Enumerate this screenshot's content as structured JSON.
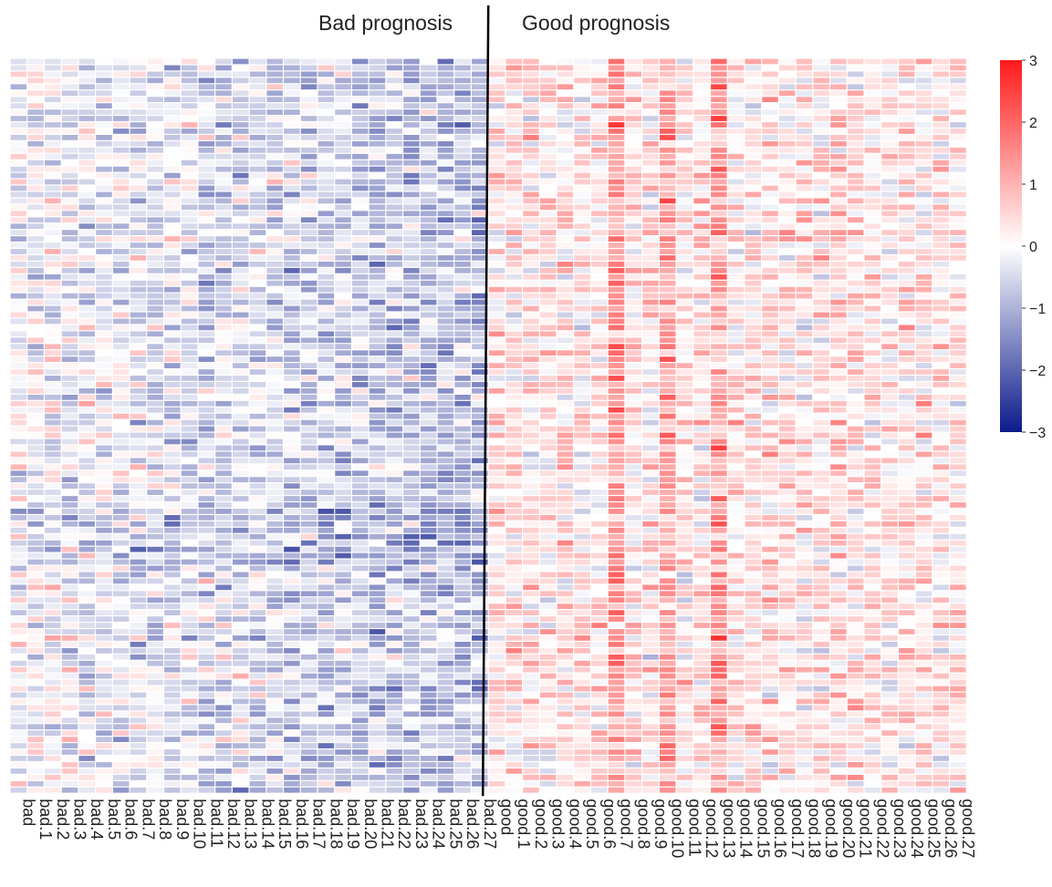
{
  "chart_data": {
    "type": "heatmap",
    "group_labels": [
      "Bad prognosis",
      "Good prognosis"
    ],
    "columns": [
      "bad",
      "bad.1",
      "bad.2",
      "bad.3",
      "bad.4",
      "bad.5",
      "bad.6",
      "bad.7",
      "bad.8",
      "bad.9",
      "bad.10",
      "bad.11",
      "bad.12",
      "bad.13",
      "bad.14",
      "bad.15",
      "bad.16",
      "bad.17",
      "bad.18",
      "bad.19",
      "bad.20",
      "bad.21",
      "bad.22",
      "bad.23",
      "bad.24",
      "bad.25",
      "bad.26",
      "bad.27",
      "good",
      "good.1",
      "good.2",
      "good.3",
      "good.4",
      "good.5",
      "good.6",
      "good.7",
      "good.8",
      "good.9",
      "good.10",
      "good.11",
      "good.12",
      "good.13",
      "good.14",
      "good.15",
      "good.16",
      "good.17",
      "good.18",
      "good.19",
      "good.20",
      "good.21",
      "good.22",
      "good.23",
      "good.24",
      "good.25",
      "good.26",
      "good.27"
    ],
    "row_count": 116,
    "colorbar": {
      "ticks": [
        3,
        2,
        1,
        0,
        -1,
        -2,
        -3
      ],
      "range": [
        -3,
        3
      ],
      "colors": {
        "low": "#0b1a8a",
        "mid": "#ffffff",
        "high": "#ff1a1a"
      }
    },
    "cell_border": "#ffffff",
    "column_divider": "after bad.27"
  }
}
